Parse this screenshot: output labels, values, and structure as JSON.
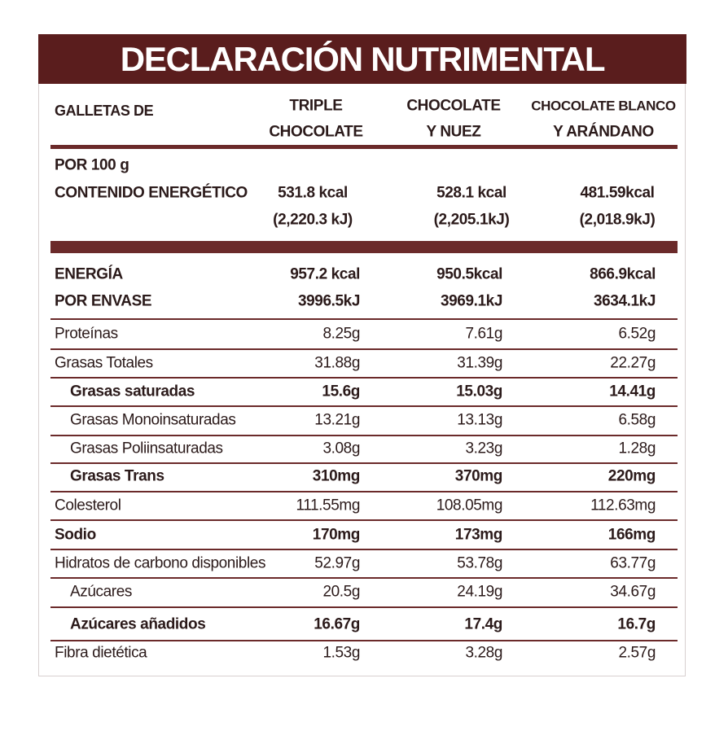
{
  "title": "DECLARACIÓN NUTRIMENTAL",
  "header": {
    "label": "GALLETAS DE",
    "columns": [
      [
        "TRIPLE",
        "CHOCOLATE"
      ],
      [
        "CHOCOLATE",
        "Y NUEZ"
      ],
      [
        "CHOCOLATE BLANCO",
        "Y ARÁNDANO"
      ]
    ]
  },
  "per_100": {
    "labels": [
      "POR 100 g",
      "CONTENIDO ENERGÉTICO"
    ],
    "values": [
      [
        "531.8 kcal",
        "(2,220.3 kJ)"
      ],
      [
        "528.1 kcal",
        "(2,205.1kJ)"
      ],
      [
        "481.59kcal",
        "(2,018.9kJ)"
      ]
    ]
  },
  "energy": {
    "labels": [
      "ENERGÍA",
      "POR ENVASE"
    ],
    "values": [
      [
        "957.2 kcal",
        "3996.5kJ"
      ],
      [
        "950.5kcal",
        "3969.1kJ"
      ],
      [
        "866.9kcal",
        "3634.1kJ"
      ]
    ]
  },
  "rows": [
    {
      "label": "Proteínas",
      "values": [
        "8.25g",
        "7.61g",
        "6.52g"
      ],
      "bold": false,
      "indent": false
    },
    {
      "label": "Grasas Totales",
      "values": [
        "31.88g",
        "31.39g",
        "22.27g"
      ],
      "bold": false,
      "indent": false
    },
    {
      "label": "Grasas saturadas",
      "values": [
        "15.6g",
        "15.03g",
        "14.41g"
      ],
      "bold": true,
      "indent": true
    },
    {
      "label": "Grasas Monoinsaturadas",
      "values": [
        "13.21g",
        "13.13g",
        "6.58g"
      ],
      "bold": false,
      "indent": true
    },
    {
      "label": "Grasas Poliinsaturadas",
      "values": [
        "3.08g",
        "3.23g",
        "1.28g"
      ],
      "bold": false,
      "indent": true
    },
    {
      "label": "Grasas Trans",
      "values": [
        "310mg",
        "370mg",
        "220mg"
      ],
      "bold": true,
      "indent": true
    },
    {
      "label": "Colesterol",
      "values": [
        "111.55mg",
        "108.05mg",
        "112.63mg"
      ],
      "bold": false,
      "indent": false
    },
    {
      "label": "Sodio",
      "values": [
        "170mg",
        "173mg",
        "166mg"
      ],
      "bold": true,
      "indent": false
    },
    {
      "label": "Hidratos de carbono disponibles",
      "values": [
        "52.97g",
        "53.78g",
        "63.77g"
      ],
      "bold": false,
      "indent": false
    },
    {
      "label": "Azúcares",
      "values": [
        "20.5g",
        "24.19g",
        "34.67g"
      ],
      "bold": false,
      "indent": true
    },
    {
      "label": "Azúcares añadidos",
      "values": [
        "16.67g",
        "17.4g",
        "16.7g"
      ],
      "bold": true,
      "indent": true
    },
    {
      "label": "Fibra dietética",
      "values": [
        "1.53g",
        "3.28g",
        "2.57g"
      ],
      "bold": false,
      "indent": false
    }
  ]
}
